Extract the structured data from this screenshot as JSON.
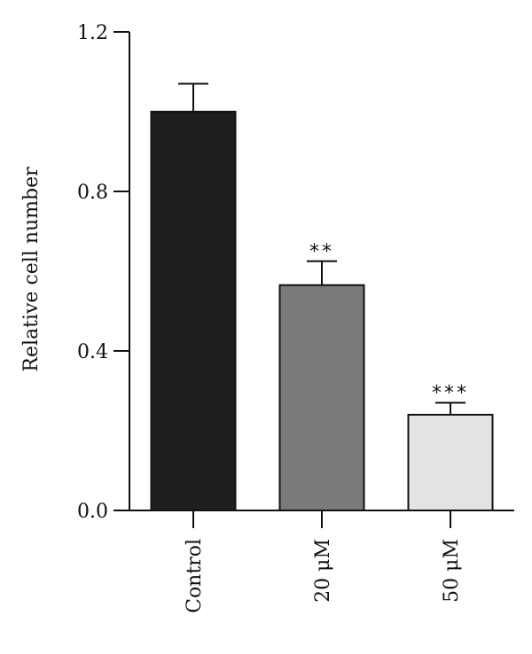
{
  "chart_data": {
    "type": "bar",
    "title": "",
    "xlabel": "",
    "ylabel": "Relative cell number",
    "ylim": [
      0,
      1.2
    ],
    "yticks": [
      "0.0",
      "0.4",
      "0.8",
      "1.2"
    ],
    "ytick_values": [
      0,
      0.4,
      0.8,
      1.2
    ],
    "categories": [
      "Control",
      "20 μM",
      "50 μM"
    ],
    "values": [
      1.0,
      0.565,
      0.24
    ],
    "errors": [
      0.07,
      0.06,
      0.03
    ],
    "significance": [
      "",
      "**",
      "***"
    ],
    "bar_colors": [
      "#1e1e1e",
      "#7a7a7a",
      "#e3e3e3"
    ],
    "grid": false
  }
}
